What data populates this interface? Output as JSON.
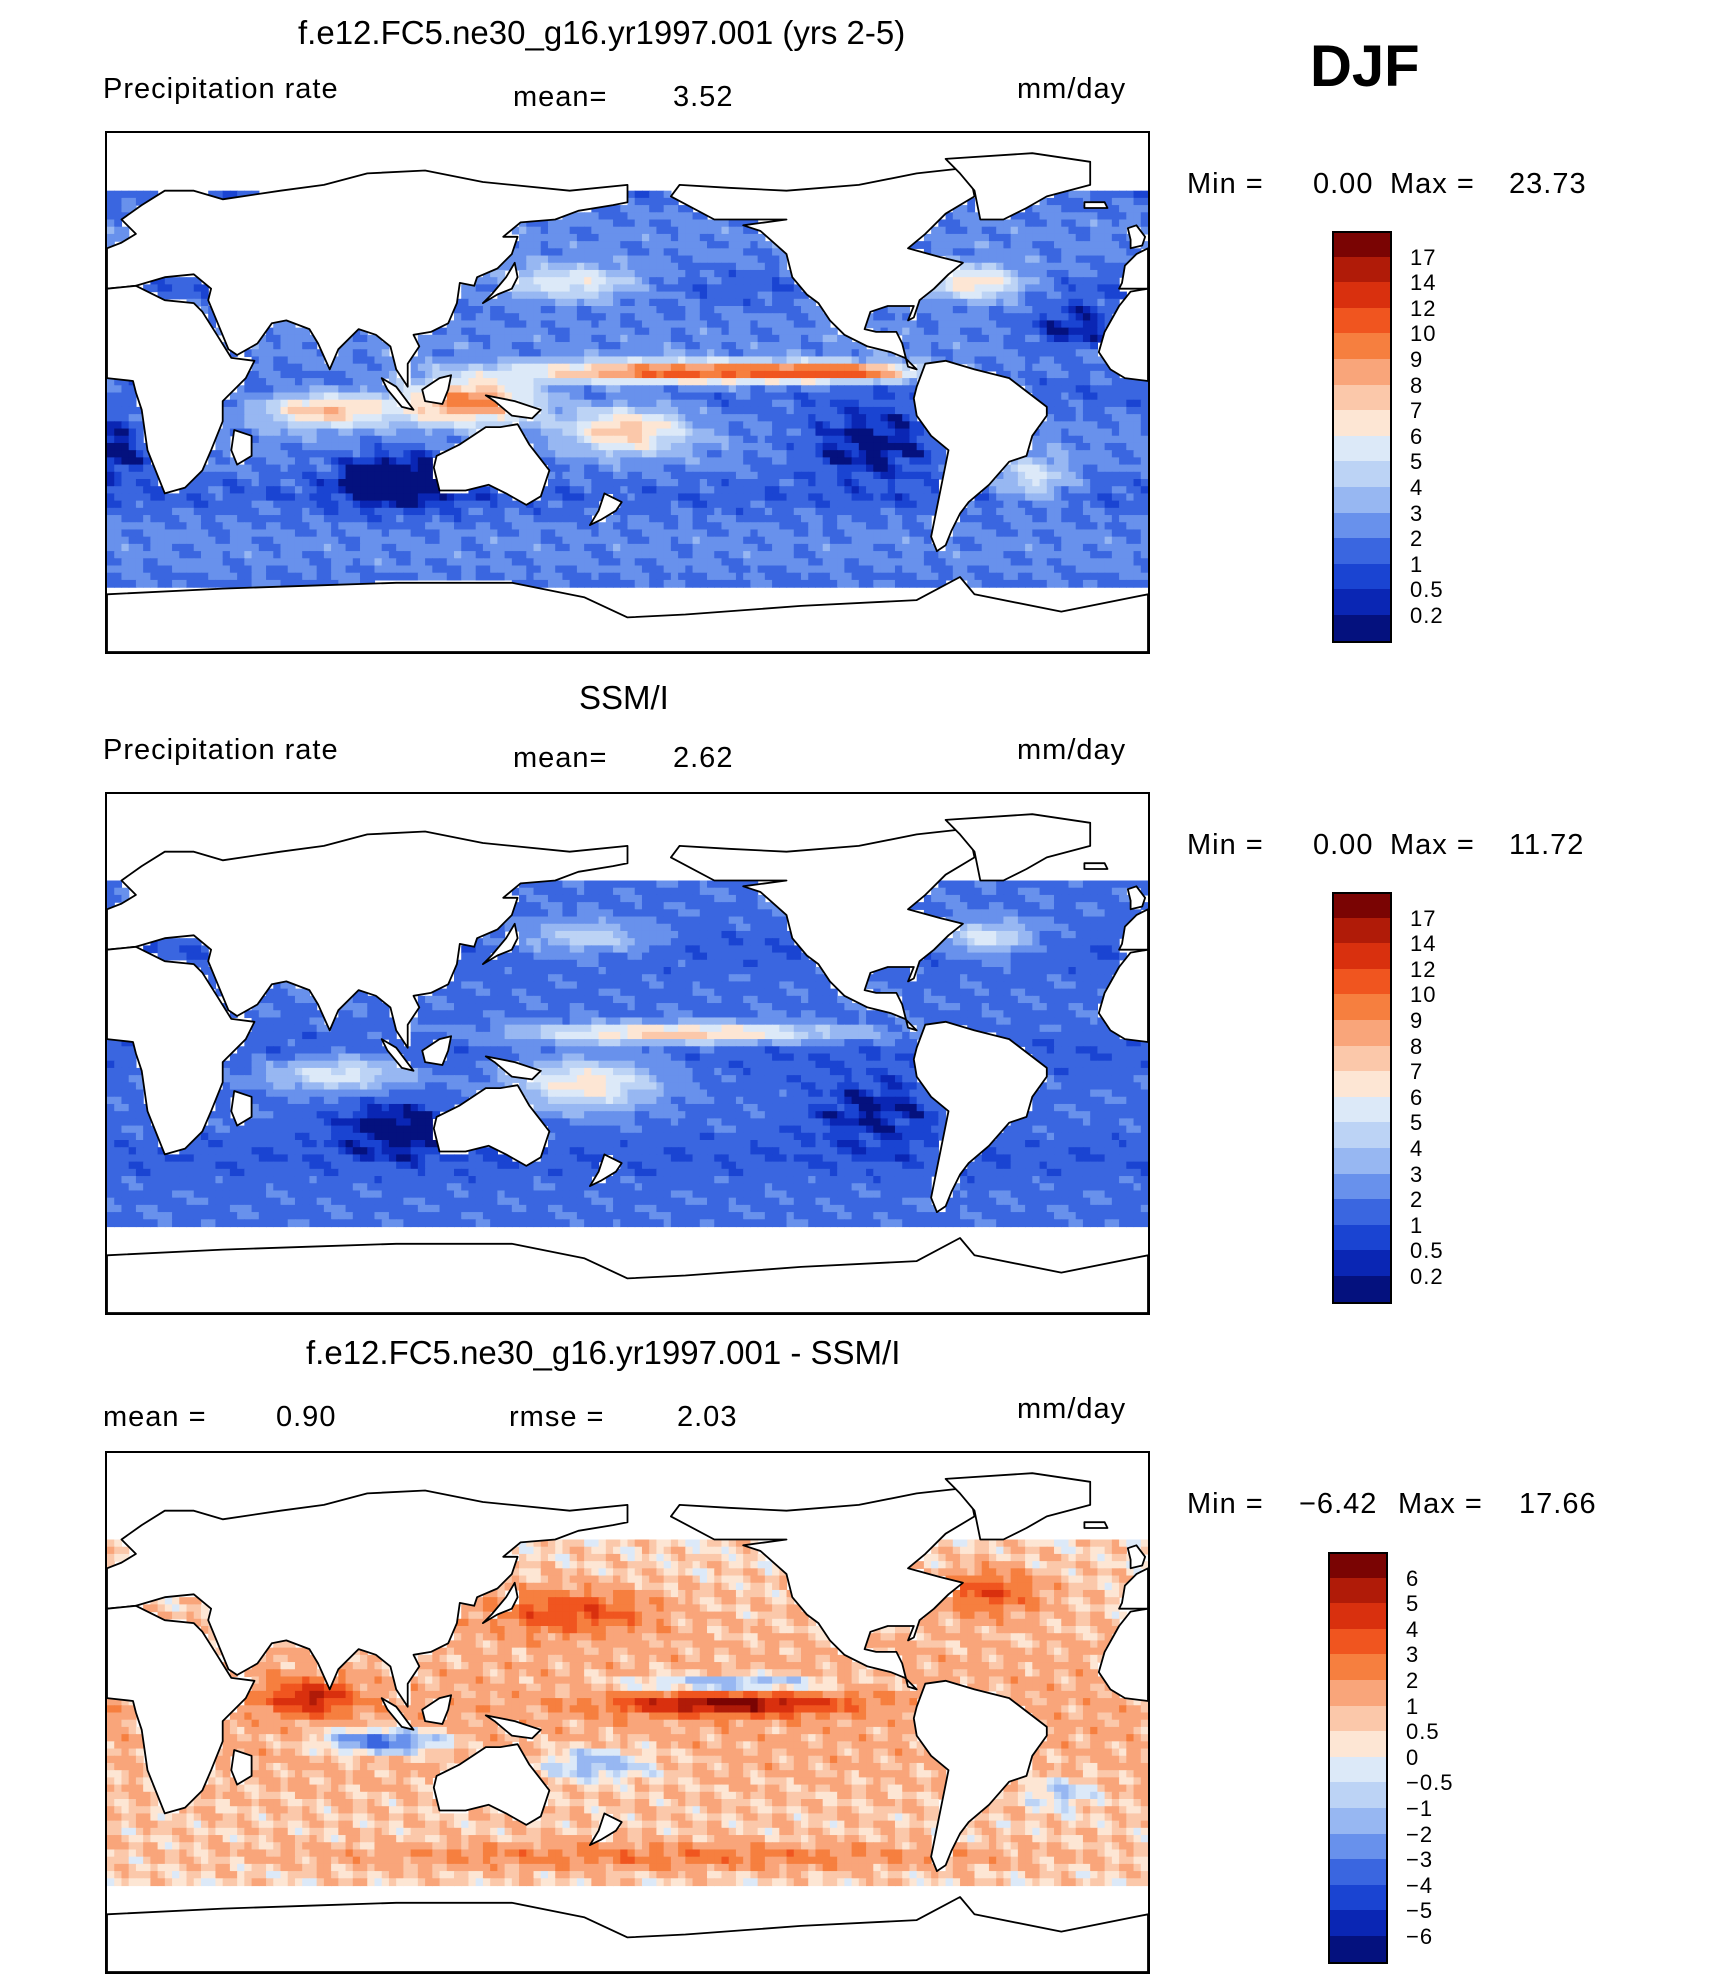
{
  "season": "DJF",
  "panels": [
    {
      "title": "f.e12.FC5.ne30_g16.yr1997.001 (yrs 2-5)",
      "left_label": "Precipitation  rate",
      "mid_label": "mean=",
      "mid_value": "3.52",
      "units": "mm/day",
      "min_label": "Min  =",
      "min_value": "0.00",
      "max_label": "Max  =",
      "max_value": "23.73",
      "field": "model",
      "colorbar": {
        "levels": [
          "17",
          "14",
          "12",
          "10",
          "9",
          "8",
          "7",
          "6",
          "5",
          "4",
          "3",
          "2",
          "1",
          "0.5",
          "0.2"
        ],
        "colors": [
          "#7a0403",
          "#b01b08",
          "#d9300e",
          "#f0551f",
          "#f67f3f",
          "#f9a57a",
          "#fbc8aa",
          "#fde6d4",
          "#dce9f8",
          "#bcd3f5",
          "#97b7f2",
          "#6891ec",
          "#3a66e0",
          "#1a44d2",
          "#0a26b4",
          "#04117e"
        ]
      }
    },
    {
      "title": "SSM/I",
      "left_label": "Precipitation  rate",
      "mid_label": "mean=",
      "mid_value": "2.62",
      "units": "mm/day",
      "min_label": "Min  =",
      "min_value": "0.00",
      "max_label": "Max  =",
      "max_value": "11.72",
      "field": "obs",
      "colorbar": {
        "levels": [
          "17",
          "14",
          "12",
          "10",
          "9",
          "8",
          "7",
          "6",
          "5",
          "4",
          "3",
          "2",
          "1",
          "0.5",
          "0.2"
        ],
        "colors": [
          "#7a0403",
          "#b01b08",
          "#d9300e",
          "#f0551f",
          "#f67f3f",
          "#f9a57a",
          "#fbc8aa",
          "#fde6d4",
          "#dce9f8",
          "#bcd3f5",
          "#97b7f2",
          "#6891ec",
          "#3a66e0",
          "#1a44d2",
          "#0a26b4",
          "#04117e"
        ]
      }
    },
    {
      "title": "f.e12.FC5.ne30_g16.yr1997.001 - SSM/I",
      "left_label": "mean  =",
      "left_value": "0.90",
      "mid_label": "rmse  =",
      "mid_value": "2.03",
      "units": "mm/day",
      "min_label": "Min  =",
      "min_value": "−6.42",
      "max_label": "Max  =",
      "max_value": "17.66",
      "field": "diff",
      "colorbar": {
        "levels": [
          "6",
          "5",
          "4",
          "3",
          "2",
          "1",
          "0.5",
          "0",
          "−0.5",
          "−1",
          "−2",
          "−3",
          "−4",
          "−5",
          "−6"
        ],
        "colors": [
          "#7a0403",
          "#b01b08",
          "#d9300e",
          "#f0551f",
          "#f67f3f",
          "#f9a57a",
          "#fbc8aa",
          "#fde6d4",
          "#dce9f8",
          "#bcd3f5",
          "#97b7f2",
          "#6891ec",
          "#3a66e0",
          "#1a44d2",
          "#0a26b4",
          "#04117e"
        ]
      }
    }
  ]
}
